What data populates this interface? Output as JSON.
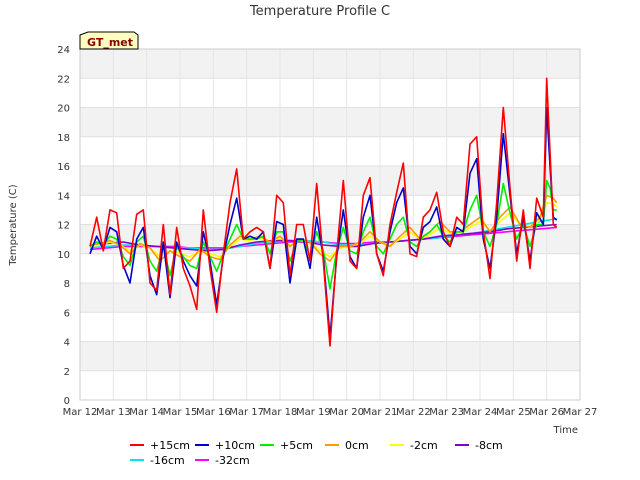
{
  "chart_data": {
    "type": "line",
    "title": "Temperature Profile C",
    "xlabel": "Time",
    "ylabel": "Temperature (C)",
    "badge": "GT_met",
    "ylim": [
      0,
      24
    ],
    "yticks": [
      0,
      2,
      4,
      6,
      8,
      10,
      12,
      14,
      16,
      18,
      20,
      22,
      24
    ],
    "xlim": [
      12,
      27
    ],
    "xticks": [
      {
        "v": 12,
        "label": "Mar 12"
      },
      {
        "v": 13,
        "label": "Mar 13"
      },
      {
        "v": 14,
        "label": "Mar 14"
      },
      {
        "v": 15,
        "label": "Mar 15"
      },
      {
        "v": 16,
        "label": "Mar 16"
      },
      {
        "v": 17,
        "label": "Mar 17"
      },
      {
        "v": 18,
        "label": "Mar 18"
      },
      {
        "v": 19,
        "label": "Mar 19"
      },
      {
        "v": 20,
        "label": "Mar 20"
      },
      {
        "v": 21,
        "label": "Mar 21"
      },
      {
        "v": 22,
        "label": "Mar 22"
      },
      {
        "v": 23,
        "label": "Mar 23"
      },
      {
        "v": 24,
        "label": "Mar 24"
      },
      {
        "v": 25,
        "label": "Mar 25"
      },
      {
        "v": 26,
        "label": "Mar 26"
      },
      {
        "v": 27,
        "label": "Mar 27"
      }
    ],
    "grid": true,
    "legend_position": "bottom",
    "series": [
      {
        "name": "+15cm",
        "color": "#ff0000",
        "x": [
          12.3,
          12.5,
          12.7,
          12.9,
          13.1,
          13.3,
          13.5,
          13.7,
          13.9,
          14.1,
          14.3,
          14.5,
          14.7,
          14.9,
          15.1,
          15.3,
          15.5,
          15.7,
          15.9,
          16.1,
          16.3,
          16.5,
          16.7,
          16.9,
          17.1,
          17.3,
          17.5,
          17.7,
          17.9,
          18.1,
          18.3,
          18.5,
          18.7,
          18.9,
          19.1,
          19.3,
          19.5,
          19.7,
          19.9,
          20.1,
          20.3,
          20.5,
          20.7,
          20.9,
          21.1,
          21.3,
          21.5,
          21.7,
          21.9,
          22.1,
          22.3,
          22.5,
          22.7,
          22.9,
          23.1,
          23.3,
          23.5,
          23.7,
          23.9,
          24.1,
          24.3,
          24.5,
          24.7,
          24.9,
          25.1,
          25.3,
          25.5,
          25.7,
          25.9,
          26.0,
          26.1,
          26.2,
          26.3
        ],
        "y": [
          10.5,
          12.5,
          10.2,
          13.0,
          12.8,
          9.0,
          9.5,
          12.7,
          13.0,
          8.0,
          7.5,
          12.0,
          7.2,
          11.8,
          9.0,
          7.8,
          6.2,
          13.0,
          9.0,
          6.0,
          10.0,
          13.5,
          15.8,
          11.0,
          11.5,
          11.8,
          11.5,
          9.0,
          14.0,
          13.5,
          8.5,
          12.0,
          12.0,
          9.5,
          14.8,
          9.5,
          3.7,
          10.0,
          15.0,
          9.5,
          9.0,
          14.0,
          15.2,
          10.0,
          8.5,
          12.0,
          14.2,
          16.2,
          10.0,
          9.8,
          12.5,
          13.0,
          14.2,
          11.5,
          10.5,
          12.5,
          12.0,
          17.5,
          18.0,
          11.5,
          8.3,
          13.5,
          20.0,
          14.5,
          9.5,
          13.0,
          9.0,
          13.8,
          12.5,
          22.0,
          17.0,
          12.0,
          11.8
        ]
      },
      {
        "name": "+10cm",
        "color": "#0000cc",
        "x": [
          12.3,
          12.5,
          12.7,
          12.9,
          13.1,
          13.3,
          13.5,
          13.7,
          13.9,
          14.1,
          14.3,
          14.5,
          14.7,
          14.9,
          15.1,
          15.3,
          15.5,
          15.7,
          15.9,
          16.1,
          16.3,
          16.5,
          16.7,
          16.9,
          17.1,
          17.3,
          17.5,
          17.7,
          17.9,
          18.1,
          18.3,
          18.5,
          18.7,
          18.9,
          19.1,
          19.3,
          19.5,
          19.7,
          19.9,
          20.1,
          20.3,
          20.5,
          20.7,
          20.9,
          21.1,
          21.3,
          21.5,
          21.7,
          21.9,
          22.1,
          22.3,
          22.5,
          22.7,
          22.9,
          23.1,
          23.3,
          23.5,
          23.7,
          23.9,
          24.1,
          24.3,
          24.5,
          24.7,
          24.9,
          25.1,
          25.3,
          25.5,
          25.7,
          25.9,
          26.0,
          26.1,
          26.2,
          26.3
        ],
        "y": [
          10.0,
          11.2,
          10.3,
          11.8,
          11.5,
          9.2,
          8.0,
          11.0,
          11.8,
          8.5,
          7.2,
          10.8,
          7.0,
          10.8,
          9.5,
          8.5,
          7.8,
          11.5,
          9.5,
          6.5,
          9.8,
          12.0,
          13.8,
          11.0,
          11.2,
          11.0,
          11.5,
          9.0,
          12.2,
          12.0,
          8.0,
          11.0,
          11.0,
          9.0,
          12.5,
          9.8,
          4.3,
          9.8,
          13.0,
          9.8,
          9.0,
          12.5,
          14.0,
          10.0,
          8.8,
          11.5,
          13.5,
          14.5,
          10.5,
          10.0,
          11.8,
          12.2,
          13.2,
          11.0,
          10.5,
          11.8,
          11.5,
          15.5,
          16.5,
          11.0,
          9.0,
          12.5,
          18.2,
          14.0,
          10.0,
          12.5,
          9.5,
          12.8,
          12.0,
          20.0,
          16.0,
          12.5,
          12.3
        ]
      },
      {
        "name": "+5cm",
        "color": "#00ee00",
        "x": [
          12.3,
          12.5,
          12.7,
          12.9,
          13.1,
          13.3,
          13.5,
          13.7,
          13.9,
          14.1,
          14.3,
          14.5,
          14.7,
          14.9,
          15.1,
          15.3,
          15.5,
          15.7,
          15.9,
          16.1,
          16.3,
          16.5,
          16.7,
          16.9,
          17.1,
          17.3,
          17.5,
          17.7,
          17.9,
          18.1,
          18.3,
          18.5,
          18.7,
          18.9,
          19.1,
          19.3,
          19.5,
          19.7,
          19.9,
          20.1,
          20.3,
          20.5,
          20.7,
          20.9,
          21.1,
          21.3,
          21.5,
          21.7,
          21.9,
          22.1,
          22.3,
          22.5,
          22.7,
          22.9,
          23.1,
          23.3,
          23.5,
          23.7,
          23.9,
          24.1,
          24.3,
          24.5,
          24.7,
          24.9,
          25.1,
          25.3,
          25.5,
          25.7,
          25.9,
          26.0,
          26.1,
          26.2,
          26.3
        ],
        "y": [
          10.5,
          10.8,
          10.6,
          11.2,
          11.0,
          9.8,
          9.2,
          10.8,
          11.2,
          9.5,
          8.8,
          10.5,
          8.5,
          10.5,
          9.8,
          9.2,
          9.0,
          10.8,
          9.8,
          8.8,
          10.0,
          11.0,
          12.0,
          11.0,
          11.0,
          11.0,
          11.2,
          10.0,
          11.5,
          11.5,
          9.5,
          10.8,
          11.0,
          9.8,
          11.5,
          10.2,
          7.6,
          10.2,
          11.8,
          10.2,
          10.0,
          11.5,
          12.5,
          10.5,
          10.0,
          11.0,
          12.0,
          12.5,
          10.8,
          10.5,
          11.2,
          11.5,
          12.0,
          11.2,
          10.8,
          11.5,
          11.5,
          13.0,
          14.0,
          11.5,
          10.5,
          12.0,
          14.8,
          12.8,
          11.0,
          12.0,
          10.5,
          12.0,
          12.0,
          15.0,
          14.5,
          13.0,
          13.0
        ]
      },
      {
        "name": "0cm",
        "color": "#ff9900",
        "x": [
          12.3,
          12.6,
          12.9,
          13.2,
          13.5,
          13.8,
          14.1,
          14.4,
          14.7,
          15.0,
          15.3,
          15.6,
          15.9,
          16.2,
          16.5,
          16.8,
          17.1,
          17.4,
          17.7,
          18.0,
          18.3,
          18.6,
          18.9,
          19.2,
          19.5,
          19.8,
          20.1,
          20.4,
          20.7,
          21.0,
          21.3,
          21.6,
          21.9,
          22.2,
          22.5,
          22.8,
          23.1,
          23.4,
          23.7,
          24.0,
          24.3,
          24.6,
          24.9,
          25.2,
          25.5,
          25.8,
          26.0,
          26.2,
          26.3
        ],
        "y": [
          10.6,
          10.7,
          10.9,
          10.6,
          10.0,
          10.7,
          10.4,
          9.5,
          10.2,
          9.8,
          9.5,
          10.3,
          9.8,
          9.6,
          10.6,
          11.2,
          11.0,
          11.2,
          10.8,
          11.2,
          10.5,
          11.0,
          10.8,
          10.0,
          9.5,
          10.5,
          10.5,
          10.8,
          11.5,
          10.8,
          10.5,
          11.2,
          11.8,
          11.0,
          11.5,
          12.2,
          11.5,
          11.5,
          12.0,
          12.5,
          11.5,
          12.5,
          13.2,
          12.0,
          11.8,
          12.5,
          14.0,
          13.8,
          13.5
        ]
      },
      {
        "name": "-2cm",
        "color": "#ffff00",
        "x": [
          12.3,
          12.6,
          12.9,
          13.2,
          13.5,
          13.8,
          14.1,
          14.4,
          14.7,
          15.0,
          15.3,
          15.6,
          15.9,
          16.2,
          16.5,
          16.8,
          17.1,
          17.4,
          17.7,
          18.0,
          18.3,
          18.6,
          18.9,
          19.2,
          19.5,
          19.8,
          20.1,
          20.4,
          20.7,
          21.0,
          21.3,
          21.6,
          21.9,
          22.2,
          22.5,
          22.8,
          23.1,
          23.4,
          23.7,
          24.0,
          24.3,
          24.6,
          24.9,
          25.2,
          25.5,
          25.8,
          26.0,
          26.2,
          26.3
        ],
        "y": [
          10.5,
          10.6,
          10.8,
          10.6,
          10.2,
          10.6,
          10.4,
          9.8,
          10.2,
          10.0,
          9.8,
          10.2,
          10.0,
          9.8,
          10.5,
          11.0,
          10.9,
          11.1,
          10.8,
          11.1,
          10.6,
          10.9,
          10.8,
          10.2,
          9.8,
          10.4,
          10.5,
          10.7,
          11.2,
          10.8,
          10.6,
          11.0,
          11.5,
          11.0,
          11.3,
          11.8,
          11.4,
          11.4,
          11.8,
          12.2,
          11.6,
          12.2,
          12.8,
          12.0,
          11.8,
          12.3,
          13.5,
          13.4,
          13.2
        ]
      },
      {
        "name": "-8cm",
        "color": "#8800cc",
        "x": [
          12.3,
          12.8,
          13.3,
          13.8,
          14.3,
          14.8,
          15.3,
          15.8,
          16.3,
          16.8,
          17.3,
          17.8,
          18.3,
          18.8,
          19.3,
          19.8,
          20.3,
          20.8,
          21.3,
          21.8,
          22.3,
          22.8,
          23.3,
          23.8,
          24.3,
          24.8,
          25.3,
          25.8,
          26.3
        ],
        "y": [
          10.6,
          10.7,
          10.8,
          10.6,
          10.5,
          10.4,
          10.3,
          10.2,
          10.3,
          10.6,
          10.8,
          10.9,
          10.9,
          10.8,
          10.6,
          10.5,
          10.5,
          10.7,
          10.8,
          10.9,
          11.0,
          11.2,
          11.3,
          11.4,
          11.5,
          11.7,
          11.8,
          11.9,
          12.0
        ]
      },
      {
        "name": "-16cm",
        "color": "#00e5ee",
        "x": [
          12.3,
          12.8,
          13.3,
          13.8,
          14.3,
          14.8,
          15.3,
          15.8,
          16.3,
          16.8,
          17.3,
          17.8,
          18.3,
          18.8,
          19.3,
          19.8,
          20.3,
          20.8,
          21.3,
          21.8,
          22.3,
          22.8,
          23.3,
          23.8,
          24.3,
          24.8,
          25.3,
          25.8,
          26.3
        ],
        "y": [
          10.4,
          10.5,
          10.6,
          10.6,
          10.5,
          10.4,
          10.4,
          10.3,
          10.3,
          10.5,
          10.7,
          10.8,
          10.9,
          10.9,
          10.8,
          10.6,
          10.6,
          10.7,
          10.8,
          10.9,
          11.0,
          11.1,
          11.3,
          11.4,
          11.6,
          11.8,
          12.0,
          12.2,
          12.4
        ]
      },
      {
        "name": "-32cm",
        "color": "#ff00ff",
        "x": [
          12.3,
          12.8,
          13.3,
          13.8,
          14.3,
          14.8,
          15.3,
          15.8,
          16.3,
          16.8,
          17.3,
          17.8,
          18.3,
          18.8,
          19.3,
          19.8,
          20.3,
          20.8,
          21.3,
          21.8,
          22.3,
          22.8,
          23.3,
          23.8,
          24.3,
          24.8,
          25.3,
          25.8,
          26.3
        ],
        "y": [
          10.3,
          10.4,
          10.5,
          10.5,
          10.5,
          10.5,
          10.4,
          10.4,
          10.4,
          10.5,
          10.6,
          10.7,
          10.8,
          10.8,
          10.8,
          10.7,
          10.7,
          10.8,
          10.8,
          10.9,
          11.0,
          11.1,
          11.2,
          11.3,
          11.4,
          11.5,
          11.6,
          11.7,
          11.8
        ]
      }
    ]
  }
}
